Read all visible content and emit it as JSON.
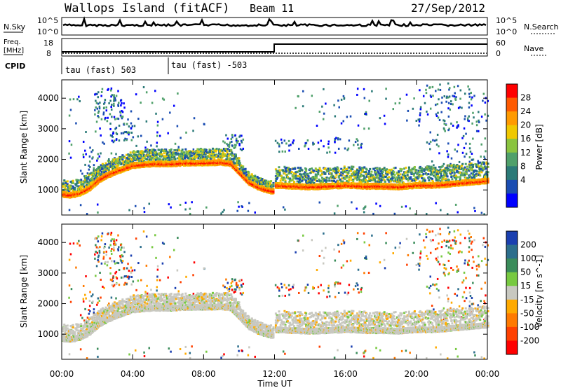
{
  "header": {
    "station": "Wallops Island (fitACF)",
    "beam": "Beam 11",
    "date": "27/Sep/2012"
  },
  "panels": {
    "nsky_label": "N.Sky",
    "nsky_ticks": [
      "10^5",
      "10^0"
    ],
    "nsearch_label": "N.Search",
    "nsearch_ticks": [
      "10^5",
      "10^0"
    ],
    "freq_label": "Freq.",
    "freq_unit": "[MHz]",
    "freq_ticks": [
      "18",
      "8"
    ],
    "nave_label": "Nave",
    "nave_ticks": [
      "60",
      "0"
    ],
    "cpid_label": "CPID",
    "cpid_segments": [
      {
        "label": "tau (fast) 503",
        "start_hour": 0
      },
      {
        "label": "tau (fast) -503",
        "start_hour": 6
      }
    ]
  },
  "chart_data": [
    {
      "type": "heatmap",
      "name": "power",
      "ylabel": "Slant Range [km]",
      "yticks": [
        1000,
        2000,
        3000,
        4000
      ],
      "ylim": [
        180,
        4600
      ],
      "xlim": [
        0,
        24
      ],
      "colorbar": {
        "label": "Power [dB]",
        "ticks": [
          "28",
          "24",
          "20",
          "16",
          "12",
          "8",
          "4"
        ],
        "colors": [
          "#ff0000",
          "#ff5a00",
          "#ff9a00",
          "#f0c800",
          "#8ac43f",
          "#4fa06a",
          "#2b7a78",
          "#1a4db2",
          "#0000ff"
        ]
      },
      "traces": [
        {
          "x": [
            0.0,
            0.5,
            1.0,
            1.5,
            2.0,
            2.5,
            3.0,
            3.5,
            4.0,
            5.0,
            6.0,
            7.0,
            8.0,
            9.0,
            9.5,
            10.0,
            10.5,
            11.0,
            11.5,
            11.9
          ],
          "y": [
            850,
            830,
            900,
            1050,
            1300,
            1470,
            1600,
            1700,
            1800,
            1850,
            1850,
            1880,
            1880,
            1900,
            1850,
            1550,
            1250,
            1100,
            1000,
            950
          ]
        },
        {
          "x": [
            12.0,
            13.0,
            14.0,
            15.0,
            16.0,
            17.0,
            18.0,
            19.0,
            20.0,
            21.0,
            22.0,
            23.0,
            24.0
          ],
          "y": [
            1150,
            1120,
            1100,
            1120,
            1150,
            1120,
            1120,
            1100,
            1150,
            1150,
            1200,
            1250,
            1300
          ]
        }
      ]
    },
    {
      "type": "heatmap",
      "name": "velocity",
      "ylabel": "Slant Range [km]",
      "xlabel": "Time UT",
      "xticks": [
        "00:00",
        "04:00",
        "08:00",
        "12:00",
        "16:00",
        "20:00",
        "00:00"
      ],
      "yticks": [
        1000,
        2000,
        3000,
        4000
      ],
      "ylim": [
        180,
        4600
      ],
      "xlim": [
        0,
        24
      ],
      "colorbar": {
        "label": "Velocity [m s^-1]",
        "ticks": [
          "200",
          "100",
          "50",
          "15",
          "-15",
          "-50",
          "-100",
          "-200"
        ],
        "colors": [
          "#1a3fb0",
          "#2c6e8c",
          "#3a8c5a",
          "#77c940",
          "#c8c8c0",
          "#ffaa00",
          "#ff7a00",
          "#ff4000",
          "#ff0000"
        ]
      }
    }
  ]
}
